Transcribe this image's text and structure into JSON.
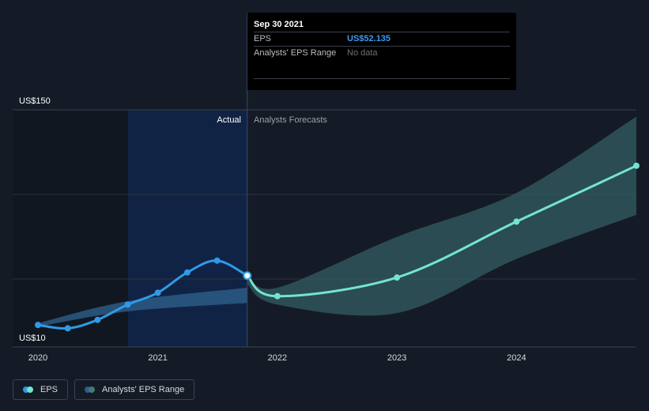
{
  "tooltip": {
    "date": "Sep 30 2021",
    "rows": [
      {
        "label": "EPS",
        "value": "US$52.135"
      },
      {
        "label": "Analysts' EPS Range",
        "value": "No data"
      }
    ]
  },
  "legend": {
    "items": [
      {
        "label": "EPS",
        "colors": [
          "#2f9ae8",
          "#73e4d0"
        ]
      },
      {
        "label": "Analysts' EPS Range",
        "colors": [
          "#2d5d86",
          "#3f7b78"
        ]
      }
    ]
  },
  "colors": {
    "background": "#151b26",
    "actual_line": "#2f9ae8",
    "forecast_line": "#73e4d0",
    "actual_band": "#2b5b85",
    "forecast_band": "#335e63",
    "actual_region": "#112344",
    "grid": "#2a313d"
  },
  "chart_data": {
    "type": "line",
    "y_tick_labels": [
      "US$150",
      "US$10"
    ],
    "ylim": [
      10,
      150
    ],
    "x_tick_labels": [
      "2020",
      "2021",
      "2022",
      "2023",
      "2024"
    ],
    "xlim": [
      "2019-12-31",
      "2024-12-31"
    ],
    "region_labels": {
      "actual": "Actual",
      "forecast": "Analysts Forecasts"
    },
    "divider_date": "2021-09-30",
    "series": [
      {
        "name": "EPS",
        "role": "actual",
        "points": [
          {
            "date": "2019-12-31",
            "value": 23
          },
          {
            "date": "2020-03-31",
            "value": 21
          },
          {
            "date": "2020-06-30",
            "value": 26
          },
          {
            "date": "2020-09-30",
            "value": 35
          },
          {
            "date": "2020-12-31",
            "value": 42
          },
          {
            "date": "2021-03-31",
            "value": 54
          },
          {
            "date": "2021-06-30",
            "value": 61
          },
          {
            "date": "2021-09-30",
            "value": 52.135
          }
        ]
      },
      {
        "name": "EPS",
        "role": "forecast",
        "points": [
          {
            "date": "2021-09-30",
            "value": 52.135
          },
          {
            "date": "2021-12-31",
            "value": 40
          },
          {
            "date": "2022-12-31",
            "value": 51
          },
          {
            "date": "2023-12-31",
            "value": 84
          },
          {
            "date": "2024-12-31",
            "value": 117
          }
        ]
      }
    ],
    "ranges": [
      {
        "name": "Analysts' EPS Range",
        "role": "actual",
        "points": [
          {
            "date": "2019-12-31",
            "low": 22,
            "high": 24
          },
          {
            "date": "2020-09-30",
            "low": 31,
            "high": 37
          },
          {
            "date": "2021-09-30",
            "low": 36,
            "high": 45
          }
        ]
      },
      {
        "name": "Analysts' EPS Range",
        "role": "forecast",
        "points": [
          {
            "date": "2021-09-30",
            "low": 47,
            "high": 53
          },
          {
            "date": "2021-12-31",
            "low": 35,
            "high": 45
          },
          {
            "date": "2022-12-31",
            "low": 30,
            "high": 75
          },
          {
            "date": "2023-12-31",
            "low": 62,
            "high": 101
          },
          {
            "date": "2024-12-31",
            "low": 88,
            "high": 146
          }
        ]
      }
    ]
  }
}
